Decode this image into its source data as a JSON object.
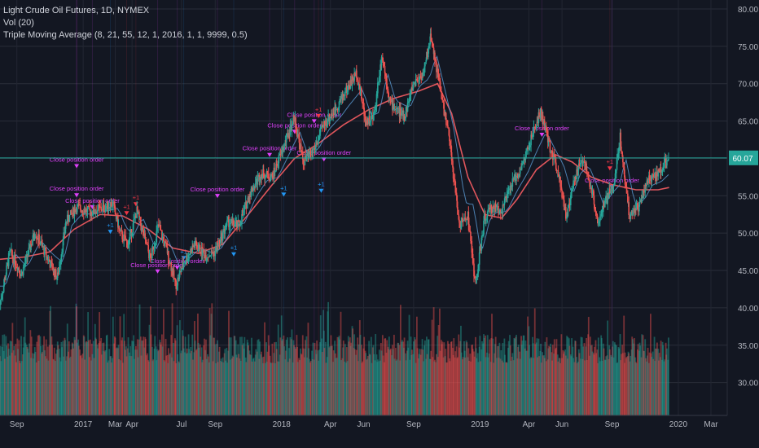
{
  "legend": {
    "symbol": "Light Crude Oil Futures, 1D, NYMEX",
    "volume": "Vol (20)",
    "strategy": "Triple Moving Average (8, 21, 55, 12, 1, 2016, 1, 1, 9999, 0.5)"
  },
  "last_price_label": "60.07",
  "order_label": "Close position order",
  "order_qty": "+1",
  "colors": {
    "background": "#131722",
    "up": "#26a69a",
    "down": "#ef5350",
    "ma_slow": "#e0565c",
    "ma_fast": "#5b9bd5",
    "order_close": "#e040fb",
    "order_long": "#2196f3",
    "order_short": "#f23645",
    "last_price_line": "#26a69a"
  },
  "chart_data": {
    "type": "line",
    "title": "Light Crude Oil Futures, 1D, NYMEX",
    "y_axis": {
      "ticks": [
        "80.00",
        "75.00",
        "70.00",
        "65.00",
        "60.00",
        "55.00",
        "50.00",
        "45.00",
        "40.00",
        "35.00",
        "30.00"
      ],
      "range": [
        25.6,
        81.2
      ],
      "side": "right"
    },
    "x_axis": {
      "labels": [
        "Sep",
        "2017",
        "Mar",
        "Apr",
        "Jul",
        "Sep",
        "2018",
        "Apr",
        "Jun",
        "Sep",
        "2019",
        "Apr",
        "Jun",
        "Sep",
        "2020",
        "Mar"
      ]
    },
    "x_range": [
      "2016-08-01",
      "2020-03-31"
    ],
    "price_series": {
      "name": "Close",
      "points": [
        [
          "2016-08-01",
          40.5
        ],
        [
          "2016-08-20",
          47.5
        ],
        [
          "2016-09-10",
          44.5
        ],
        [
          "2016-10-05",
          50.2
        ],
        [
          "2016-11-01",
          46.0
        ],
        [
          "2016-11-15",
          44.0
        ],
        [
          "2016-12-01",
          51.5
        ],
        [
          "2016-12-20",
          53.5
        ],
        [
          "2017-01-15",
          52.8
        ],
        [
          "2017-02-10",
          53.5
        ],
        [
          "2017-02-25",
          54.0
        ],
        [
          "2017-03-10",
          50.0
        ],
        [
          "2017-03-25",
          48.5
        ],
        [
          "2017-04-10",
          53.0
        ],
        [
          "2017-05-05",
          46.5
        ],
        [
          "2017-05-20",
          51.0
        ],
        [
          "2017-06-05",
          47.5
        ],
        [
          "2017-06-21",
          43.0
        ],
        [
          "2017-07-05",
          46.0
        ],
        [
          "2017-07-25",
          48.5
        ],
        [
          "2017-08-15",
          47.0
        ],
        [
          "2017-09-01",
          47.5
        ],
        [
          "2017-09-25",
          51.5
        ],
        [
          "2017-10-15",
          51.0
        ],
        [
          "2017-11-05",
          55.5
        ],
        [
          "2017-11-25",
          58.0
        ],
        [
          "2017-12-15",
          57.5
        ],
        [
          "2018-01-05",
          61.5
        ],
        [
          "2018-01-25",
          65.5
        ],
        [
          "2018-02-10",
          59.5
        ],
        [
          "2018-03-01",
          61.0
        ],
        [
          "2018-03-20",
          64.5
        ],
        [
          "2018-04-10",
          66.5
        ],
        [
          "2018-04-25",
          68.5
        ],
        [
          "2018-05-20",
          71.5
        ],
        [
          "2018-06-05",
          65.0
        ],
        [
          "2018-06-20",
          65.5
        ],
        [
          "2018-07-05",
          74.0
        ],
        [
          "2018-07-20",
          67.5
        ],
        [
          "2018-08-15",
          65.5
        ],
        [
          "2018-09-01",
          70.0
        ],
        [
          "2018-09-20",
          71.5
        ],
        [
          "2018-10-03",
          76.5
        ],
        [
          "2018-10-20",
          69.5
        ],
        [
          "2018-11-05",
          63.0
        ],
        [
          "2018-11-25",
          51.0
        ],
        [
          "2018-12-10",
          52.5
        ],
        [
          "2018-12-24",
          43.0
        ],
        [
          "2019-01-10",
          52.0
        ],
        [
          "2019-01-25",
          53.5
        ],
        [
          "2019-02-10",
          53.0
        ],
        [
          "2019-03-01",
          56.5
        ],
        [
          "2019-03-20",
          59.0
        ],
        [
          "2019-04-10",
          63.5
        ],
        [
          "2019-04-23",
          66.3
        ],
        [
          "2019-05-10",
          61.5
        ],
        [
          "2019-05-25",
          58.5
        ],
        [
          "2019-06-10",
          52.0
        ],
        [
          "2019-06-25",
          57.5
        ],
        [
          "2019-07-10",
          60.0
        ],
        [
          "2019-07-25",
          56.0
        ],
        [
          "2019-08-07",
          51.5
        ],
        [
          "2019-08-25",
          55.0
        ],
        [
          "2019-09-05",
          56.5
        ],
        [
          "2019-09-16",
          62.9
        ],
        [
          "2019-10-03",
          52.5
        ],
        [
          "2019-10-20",
          53.5
        ],
        [
          "2019-11-05",
          57.0
        ],
        [
          "2019-11-20",
          57.5
        ],
        [
          "2019-12-06",
          59.2
        ],
        [
          "2019-12-15",
          60.07
        ]
      ]
    },
    "ma_series": {
      "name": "",
      "points": [
        [
          "2016-08-01",
          46.5
        ],
        [
          "2016-09-15",
          46.8
        ],
        [
          "2016-11-01",
          47.5
        ],
        [
          "2016-12-15",
          50.5
        ],
        [
          "2017-02-01",
          52.5
        ],
        [
          "2017-03-15",
          52.3
        ],
        [
          "2017-05-01",
          50.5
        ],
        [
          "2017-06-15",
          48.0
        ],
        [
          "2017-08-01",
          47.3
        ],
        [
          "2017-09-15",
          48.5
        ],
        [
          "2017-11-01",
          52.5
        ],
        [
          "2017-12-15",
          56.5
        ],
        [
          "2018-01-25",
          60.0
        ],
        [
          "2018-03-10",
          62.0
        ],
        [
          "2018-04-25",
          64.5
        ],
        [
          "2018-06-10",
          66.5
        ],
        [
          "2018-07-25",
          68.0
        ],
        [
          "2018-09-10",
          69.0
        ],
        [
          "2018-10-15",
          70.0
        ],
        [
          "2018-11-10",
          66.0
        ],
        [
          "2018-12-10",
          57.5
        ],
        [
          "2019-01-10",
          52.5
        ],
        [
          "2019-02-10",
          52.0
        ],
        [
          "2019-03-10",
          54.5
        ],
        [
          "2019-04-15",
          58.5
        ],
        [
          "2019-05-20",
          60.5
        ],
        [
          "2019-06-20",
          59.5
        ],
        [
          "2019-07-25",
          57.5
        ],
        [
          "2019-09-01",
          56.5
        ],
        [
          "2019-10-15",
          55.8
        ],
        [
          "2019-11-25",
          55.8
        ],
        [
          "2019-12-15",
          56.1
        ]
      ]
    },
    "volume_axis": {
      "range": [
        0,
        1
      ]
    },
    "orders": [
      [
        "2016-12-20",
        "close",
        58.8
      ],
      [
        "2016-12-20",
        "close",
        54.9
      ],
      [
        "2017-01-18",
        "close",
        53.3
      ],
      [
        "2017-02-20",
        "long",
        50.0
      ],
      [
        "2017-03-22",
        "short",
        52.5
      ],
      [
        "2017-04-08",
        "short",
        53.7
      ],
      [
        "2017-05-18",
        "close",
        44.7
      ],
      [
        "2017-06-23",
        "close",
        45.2
      ],
      [
        "2017-07-05",
        "long",
        46.5
      ],
      [
        "2017-09-05",
        "close",
        54.8
      ],
      [
        "2017-10-05",
        "long",
        47.0
      ],
      [
        "2017-12-10",
        "close",
        60.3
      ],
      [
        "2018-01-05",
        "long",
        55.0
      ],
      [
        "2018-01-25",
        "close",
        63.4
      ],
      [
        "2018-03-02",
        "close",
        64.8
      ],
      [
        "2018-03-10",
        "short",
        65.5
      ],
      [
        "2018-03-15",
        "long",
        55.5
      ],
      [
        "2018-03-20",
        "close",
        59.7
      ],
      [
        "2019-04-25",
        "close",
        63.0
      ],
      [
        "2019-08-28",
        "short",
        58.5
      ],
      [
        "2019-09-01",
        "close",
        56.0
      ]
    ]
  }
}
